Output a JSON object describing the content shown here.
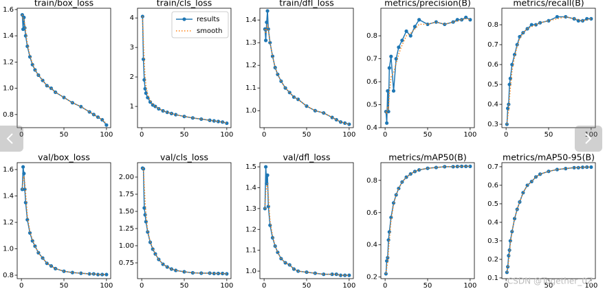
{
  "chart_data": [
    {
      "type": "line",
      "title": "train/box_loss",
      "x": [
        1,
        2,
        3,
        4,
        5,
        7,
        10,
        13,
        16,
        20,
        25,
        30,
        35,
        40,
        50,
        60,
        70,
        80,
        85,
        90,
        95,
        100
      ],
      "series": [
        {
          "name": "results",
          "color": "#1f77b4",
          "values": [
            1.56,
            1.45,
            1.54,
            1.46,
            1.4,
            1.32,
            1.24,
            1.18,
            1.14,
            1.1,
            1.06,
            1.02,
            1.0,
            0.97,
            0.93,
            0.89,
            0.86,
            0.82,
            0.8,
            0.78,
            0.76,
            0.72
          ]
        },
        {
          "name": "smooth",
          "color": "#ff7f0e",
          "values": [
            1.56,
            1.52,
            1.52,
            1.49,
            1.44,
            1.34,
            1.25,
            1.19,
            1.14,
            1.1,
            1.06,
            1.02,
            1.0,
            0.97,
            0.93,
            0.89,
            0.86,
            0.82,
            0.8,
            0.78,
            0.76,
            0.73
          ]
        }
      ],
      "xlim": [
        -4.95,
        104.95
      ],
      "xticks": [
        0,
        50,
        100
      ],
      "ylim": [
        0.7,
        1.61
      ],
      "yticks": [
        0.8,
        {
          "value": 1,
          "label": "1.0"
        },
        1.2,
        1.4,
        1.6
      ]
    },
    {
      "type": "line",
      "title": "train/cls_loss",
      "x": [
        1,
        2,
        3,
        4,
        5,
        7,
        10,
        13,
        16,
        20,
        25,
        30,
        35,
        40,
        50,
        60,
        70,
        80,
        85,
        90,
        95,
        100
      ],
      "series": [
        {
          "name": "results",
          "color": "#1f77b4",
          "values": [
            4.05,
            2.6,
            1.9,
            1.6,
            1.45,
            1.3,
            1.15,
            1.05,
            1.0,
            0.92,
            0.85,
            0.8,
            0.76,
            0.72,
            0.66,
            0.61,
            0.57,
            0.53,
            0.51,
            0.49,
            0.47,
            0.43
          ]
        },
        {
          "name": "smooth",
          "color": "#ff7f0e",
          "values": [
            4.05,
            3.2,
            2.5,
            2.0,
            1.7,
            1.4,
            1.2,
            1.07,
            1.0,
            0.93,
            0.85,
            0.8,
            0.76,
            0.72,
            0.66,
            0.61,
            0.57,
            0.53,
            0.51,
            0.49,
            0.47,
            0.44
          ]
        }
      ],
      "xlim": [
        -4.95,
        104.95
      ],
      "xticks": [
        0,
        50,
        100
      ],
      "ylim": [
        0.28,
        4.33
      ],
      "yticks": [
        1,
        2,
        3,
        4
      ],
      "legend": "upper right"
    },
    {
      "type": "line",
      "title": "train/dfl_loss",
      "x": [
        1,
        2,
        3,
        4,
        5,
        7,
        10,
        13,
        16,
        20,
        25,
        30,
        35,
        40,
        50,
        60,
        70,
        80,
        85,
        90,
        95,
        100
      ],
      "series": [
        {
          "name": "results",
          "color": "#1f77b4",
          "values": [
            1.36,
            1.31,
            1.39,
            1.44,
            1.36,
            1.3,
            1.24,
            1.19,
            1.16,
            1.13,
            1.1,
            1.08,
            1.06,
            1.05,
            1.02,
            1.0,
            0.99,
            0.97,
            0.96,
            0.95,
            0.945,
            0.94
          ]
        },
        {
          "name": "smooth",
          "color": "#ff7f0e",
          "values": [
            1.36,
            1.34,
            1.36,
            1.38,
            1.36,
            1.3,
            1.24,
            1.19,
            1.16,
            1.13,
            1.1,
            1.08,
            1.06,
            1.05,
            1.02,
            1.0,
            0.99,
            0.97,
            0.96,
            0.95,
            0.945,
            0.94
          ]
        }
      ],
      "xlim": [
        -4.95,
        104.95
      ],
      "xticks": [
        0,
        50,
        100
      ],
      "ylim": [
        0.925,
        1.452
      ],
      "yticks": [
        {
          "value": 1,
          "label": "1.0"
        },
        1.1,
        1.2,
        1.3,
        1.4
      ]
    },
    {
      "type": "line",
      "title": "metrics/precision(B)",
      "x": [
        1,
        2,
        3,
        4,
        5,
        7,
        10,
        13,
        16,
        20,
        25,
        30,
        35,
        40,
        50,
        60,
        70,
        80,
        85,
        90,
        95,
        100
      ],
      "series": [
        {
          "name": "results",
          "color": "#1f77b4",
          "values": [
            0.47,
            0.42,
            0.56,
            0.47,
            0.66,
            0.71,
            0.56,
            0.7,
            0.75,
            0.78,
            0.82,
            0.8,
            0.84,
            0.87,
            0.85,
            0.86,
            0.85,
            0.86,
            0.87,
            0.87,
            0.88,
            0.87
          ]
        },
        {
          "name": "smooth",
          "color": "#ff7f0e",
          "values": [
            0.47,
            0.46,
            0.49,
            0.48,
            0.55,
            0.62,
            0.64,
            0.68,
            0.72,
            0.76,
            0.8,
            0.81,
            0.83,
            0.85,
            0.85,
            0.86,
            0.85,
            0.86,
            0.865,
            0.87,
            0.875,
            0.87
          ]
        }
      ],
      "xlim": [
        -4.95,
        104.95
      ],
      "xticks": [
        0,
        50,
        100
      ],
      "ylim": [
        0.4,
        0.92
      ],
      "yticks": [
        0.4,
        0.5,
        0.6,
        0.7,
        0.8
      ]
    },
    {
      "type": "line",
      "title": "metrics/recall(B)",
      "x": [
        1,
        2,
        3,
        4,
        5,
        7,
        10,
        13,
        16,
        20,
        25,
        30,
        35,
        40,
        50,
        60,
        70,
        80,
        85,
        90,
        95,
        100
      ],
      "series": [
        {
          "name": "results",
          "color": "#1f77b4",
          "values": [
            0.3,
            0.38,
            0.4,
            0.5,
            0.53,
            0.6,
            0.65,
            0.7,
            0.74,
            0.76,
            0.78,
            0.8,
            0.8,
            0.81,
            0.82,
            0.84,
            0.84,
            0.83,
            0.82,
            0.82,
            0.83,
            0.83
          ]
        },
        {
          "name": "smooth",
          "color": "#ff7f0e",
          "values": [
            0.3,
            0.34,
            0.37,
            0.43,
            0.48,
            0.57,
            0.64,
            0.69,
            0.73,
            0.76,
            0.78,
            0.79,
            0.8,
            0.81,
            0.82,
            0.83,
            0.84,
            0.83,
            0.825,
            0.82,
            0.825,
            0.83
          ]
        }
      ],
      "xlim": [
        -4.95,
        104.95
      ],
      "xticks": [
        0,
        50,
        100
      ],
      "ylim": [
        0.283,
        0.883
      ],
      "yticks": [
        0.3,
        0.4,
        0.5,
        0.6,
        0.7,
        0.8
      ]
    },
    {
      "type": "line",
      "title": "val/box_loss",
      "x": [
        1,
        2,
        3,
        4,
        5,
        7,
        10,
        13,
        16,
        20,
        25,
        30,
        35,
        40,
        50,
        60,
        70,
        80,
        85,
        90,
        95,
        100
      ],
      "series": [
        {
          "name": "results",
          "color": "#1f77b4",
          "values": [
            1.45,
            1.62,
            1.57,
            1.45,
            1.35,
            1.22,
            1.12,
            1.06,
            1.02,
            0.97,
            0.93,
            0.89,
            0.87,
            0.85,
            0.83,
            0.82,
            0.815,
            0.81,
            0.81,
            0.805,
            0.805,
            0.805
          ]
        },
        {
          "name": "smooth",
          "color": "#ff7f0e",
          "values": [
            1.45,
            1.52,
            1.55,
            1.5,
            1.42,
            1.25,
            1.13,
            1.07,
            1.02,
            0.97,
            0.93,
            0.89,
            0.87,
            0.85,
            0.83,
            0.82,
            0.815,
            0.81,
            0.81,
            0.805,
            0.805,
            0.805
          ]
        }
      ],
      "xlim": [
        -4.95,
        104.95
      ],
      "xticks": [
        0,
        50,
        100
      ],
      "ylim": [
        0.774,
        1.652
      ],
      "yticks": [
        0.8,
        {
          "value": 1,
          "label": "1.0"
        },
        1.2,
        1.4,
        1.6
      ]
    },
    {
      "type": "line",
      "title": "val/cls_loss",
      "x": [
        1,
        2,
        3,
        4,
        5,
        7,
        10,
        13,
        16,
        20,
        25,
        30,
        35,
        40,
        50,
        60,
        70,
        80,
        85,
        90,
        95,
        100
      ],
      "series": [
        {
          "name": "results",
          "color": "#1f77b4",
          "values": [
            2.13,
            2.12,
            1.55,
            1.45,
            1.35,
            1.2,
            1.05,
            0.95,
            0.88,
            0.8,
            0.73,
            0.69,
            0.66,
            0.64,
            0.62,
            0.605,
            0.6,
            0.6,
            0.595,
            0.595,
            0.595,
            0.59
          ]
        },
        {
          "name": "smooth",
          "color": "#ff7f0e",
          "values": [
            2.13,
            2.12,
            1.88,
            1.65,
            1.45,
            1.22,
            1.06,
            0.96,
            0.88,
            0.8,
            0.73,
            0.69,
            0.66,
            0.64,
            0.62,
            0.605,
            0.6,
            0.6,
            0.595,
            0.595,
            0.595,
            0.59
          ]
        }
      ],
      "xlim": [
        -4.95,
        104.95
      ],
      "xticks": [
        0,
        50,
        100
      ],
      "ylim": [
        0.52,
        2.21
      ],
      "yticks": [
        {
          "value": 0.75,
          "label": "0.75"
        },
        {
          "value": 1,
          "label": "1.00"
        },
        {
          "value": 1.25,
          "label": "1.25"
        },
        {
          "value": 1.5,
          "label": "1.50"
        },
        {
          "value": 1.75,
          "label": "1.75"
        },
        {
          "value": 2,
          "label": "2.00"
        }
      ]
    },
    {
      "type": "line",
      "title": "val/dfl_loss",
      "x": [
        1,
        2,
        3,
        4,
        5,
        7,
        10,
        13,
        16,
        20,
        25,
        30,
        35,
        40,
        50,
        60,
        70,
        80,
        85,
        90,
        95,
        100
      ],
      "series": [
        {
          "name": "results",
          "color": "#1f77b4",
          "values": [
            1.3,
            1.5,
            1.42,
            1.46,
            1.31,
            1.22,
            1.16,
            1.12,
            1.09,
            1.06,
            1.04,
            1.03,
            1.01,
            1.0,
            0.995,
            0.99,
            0.985,
            0.985,
            0.985,
            0.98,
            0.98,
            0.98
          ]
        },
        {
          "name": "smooth",
          "color": "#ff7f0e",
          "values": [
            1.3,
            1.38,
            1.4,
            1.42,
            1.36,
            1.24,
            1.17,
            1.12,
            1.09,
            1.06,
            1.04,
            1.03,
            1.01,
            1.0,
            0.995,
            0.99,
            0.985,
            0.985,
            0.985,
            0.98,
            0.98,
            0.98
          ]
        }
      ],
      "xlim": [
        -4.95,
        104.95
      ],
      "xticks": [
        0,
        50,
        100
      ],
      "ylim": [
        0.964,
        1.52
      ],
      "yticks": [
        {
          "value": 1,
          "label": "1.0"
        },
        1.1,
        1.2,
        1.3,
        1.4,
        1.5
      ]
    },
    {
      "type": "line",
      "title": "metrics/mAP50(B)",
      "x": [
        1,
        2,
        3,
        4,
        5,
        7,
        10,
        13,
        16,
        20,
        25,
        30,
        35,
        40,
        50,
        60,
        70,
        80,
        85,
        90,
        95,
        100
      ],
      "series": [
        {
          "name": "results",
          "color": "#1f77b4",
          "values": [
            0.22,
            0.3,
            0.32,
            0.43,
            0.48,
            0.57,
            0.66,
            0.71,
            0.75,
            0.79,
            0.82,
            0.84,
            0.855,
            0.865,
            0.875,
            0.88,
            0.885,
            0.885,
            0.886,
            0.887,
            0.887,
            0.887
          ]
        },
        {
          "name": "smooth",
          "color": "#ff7f0e",
          "values": [
            0.22,
            0.26,
            0.29,
            0.36,
            0.43,
            0.55,
            0.65,
            0.71,
            0.75,
            0.79,
            0.82,
            0.84,
            0.855,
            0.865,
            0.875,
            0.88,
            0.885,
            0.885,
            0.886,
            0.887,
            0.887,
            0.887
          ]
        }
      ],
      "xlim": [
        -4.95,
        104.95
      ],
      "xticks": [
        0,
        50,
        100
      ],
      "ylim": [
        0.19,
        0.91
      ],
      "yticks": [
        0.2,
        0.4,
        0.6,
        0.8
      ]
    },
    {
      "type": "line",
      "title": "metrics/mAP50-95(B)",
      "x": [
        1,
        2,
        3,
        4,
        5,
        7,
        10,
        13,
        16,
        20,
        25,
        30,
        35,
        40,
        50,
        60,
        70,
        80,
        85,
        90,
        95,
        100
      ],
      "series": [
        {
          "name": "results",
          "color": "#1f77b4",
          "values": [
            0.13,
            0.16,
            0.22,
            0.25,
            0.3,
            0.35,
            0.42,
            0.47,
            0.51,
            0.56,
            0.6,
            0.62,
            0.645,
            0.66,
            0.675,
            0.685,
            0.69,
            0.695,
            0.695,
            0.697,
            0.698,
            0.698
          ]
        },
        {
          "name": "smooth",
          "color": "#ff7f0e",
          "values": [
            0.13,
            0.15,
            0.19,
            0.23,
            0.28,
            0.35,
            0.42,
            0.47,
            0.51,
            0.56,
            0.6,
            0.62,
            0.645,
            0.66,
            0.675,
            0.685,
            0.69,
            0.695,
            0.695,
            0.697,
            0.698,
            0.698
          ]
        }
      ],
      "xlim": [
        -4.95,
        104.95
      ],
      "xticks": [
        0,
        50,
        100
      ],
      "ylim": [
        0.096,
        0.722
      ],
      "yticks": [
        0.1,
        0.2,
        0.3,
        0.4,
        0.5,
        0.6,
        0.7
      ]
    }
  ],
  "watermark": "CSDN @Together_0Z"
}
